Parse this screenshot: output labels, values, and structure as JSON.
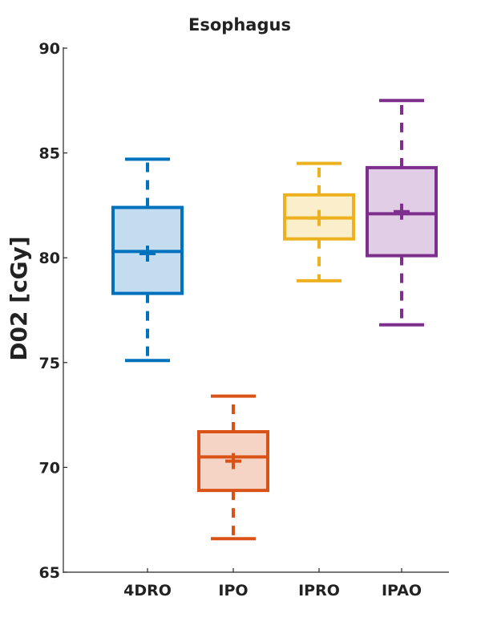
{
  "chart_data": {
    "type": "boxplot",
    "title": "Esophagus",
    "xlabel": "",
    "ylabel": "D02 [cGy]",
    "ylim": [
      65,
      90
    ],
    "yticks": [
      "65",
      "70",
      "75",
      "80",
      "85",
      "90"
    ],
    "grid": false,
    "categories": [
      "4DRO",
      "IPO",
      "IPRO",
      "IPAO"
    ],
    "boxes": [
      {
        "category": "4DRO",
        "color": "#0072BD",
        "fill": "#C3DCEF",
        "whisker_low": 75.1,
        "q1": 78.3,
        "median": 80.3,
        "q3": 82.4,
        "whisker_high": 84.7,
        "mean": 80.2
      },
      {
        "category": "IPO",
        "color": "#D95319",
        "fill": "#F6D4C5",
        "whisker_low": 66.6,
        "q1": 68.9,
        "median": 70.5,
        "q3": 71.7,
        "whisker_high": 73.4,
        "mean": 70.3
      },
      {
        "category": "IPRO",
        "color": "#EDB120",
        "fill": "#FBEFCB",
        "whisker_low": 78.9,
        "q1": 80.9,
        "median": 81.9,
        "q3": 83.0,
        "whisker_high": 84.5,
        "mean": 81.9
      },
      {
        "category": "IPAO",
        "color": "#7E2F8E",
        "fill": "#E1CDE5",
        "whisker_low": 76.8,
        "q1": 80.1,
        "median": 82.1,
        "q3": 84.3,
        "whisker_high": 87.5,
        "mean": 82.2
      }
    ]
  }
}
